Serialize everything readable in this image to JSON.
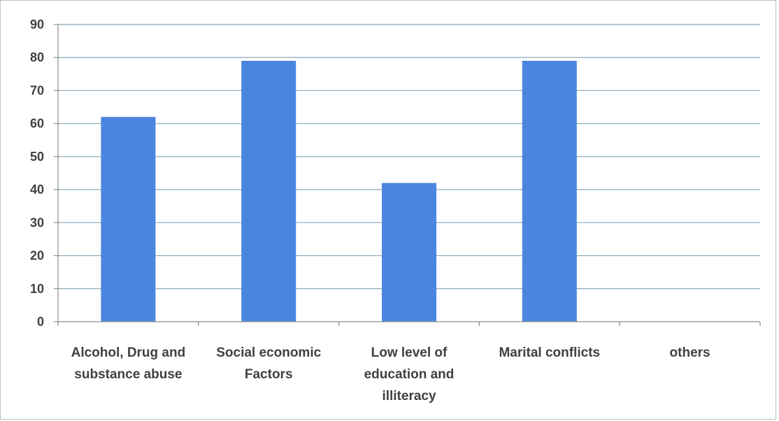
{
  "chart_data": {
    "type": "bar",
    "title": "",
    "xlabel": "",
    "ylabel": "",
    "ylim": [
      0,
      90
    ],
    "yticks": [
      0,
      10,
      20,
      30,
      40,
      50,
      60,
      70,
      80,
      90
    ],
    "grid": true,
    "legend": "none",
    "categories": [
      [
        "Alcohol, Drug and",
        "substance abuse"
      ],
      [
        "Social economic",
        "Factors"
      ],
      [
        "Low level of",
        "education and",
        "illiteracy"
      ],
      [
        "Marital conflicts"
      ],
      [
        "others"
      ]
    ],
    "values": [
      62,
      79,
      42,
      79,
      0
    ],
    "colors": {
      "bar": "#4a86e0",
      "grid": "#8aa7b8",
      "axis": "#8c8c8c",
      "text": "#404040"
    }
  }
}
